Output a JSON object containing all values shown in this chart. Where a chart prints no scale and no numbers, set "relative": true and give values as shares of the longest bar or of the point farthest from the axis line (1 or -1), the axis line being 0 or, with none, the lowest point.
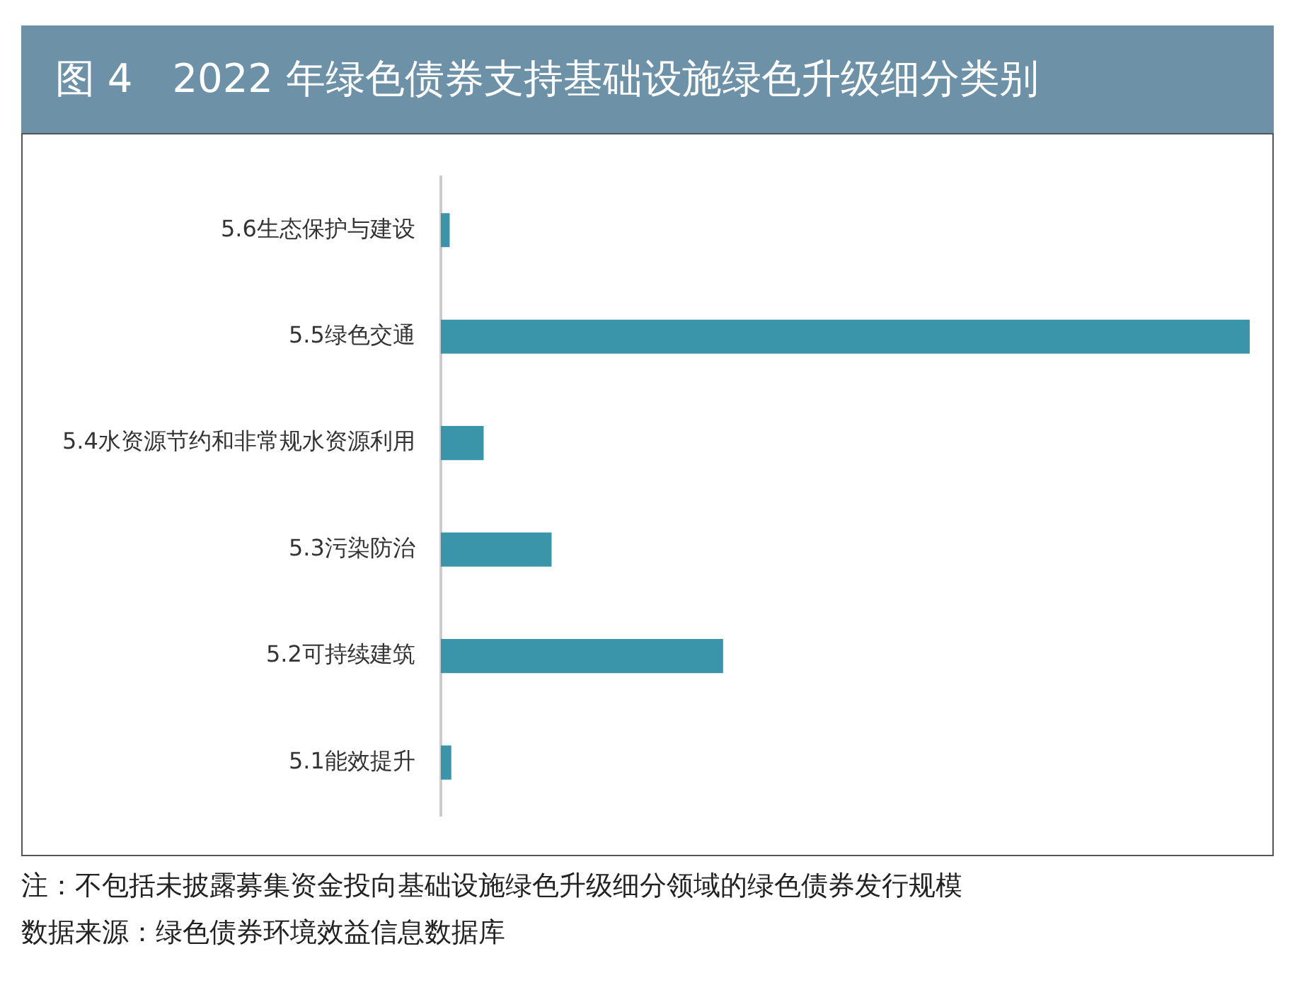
{
  "chart_data": {
    "type": "bar",
    "orientation": "horizontal",
    "relative": true,
    "title": "图 4　2022 年绿色债券支持基础设施绿色升级细分类别",
    "categories": [
      "5.6生态保护与建设",
      "5.5绿色交通",
      "5.4水资源节约和非常规水资源利用",
      "5.3污染防治",
      "5.2可持续建筑",
      "5.1能效提升"
    ],
    "values": [
      0.011,
      1,
      0.053,
      0.137,
      0.349,
      0.013
    ],
    "color": "#3a95ab",
    "legend": false,
    "annotations": [
      "注：不包括未披露募集资金投向基础设施绿色升级细分领域的绿色债券发行规模",
      "数据来源：绿色债券环境效益信息数据库"
    ]
  }
}
